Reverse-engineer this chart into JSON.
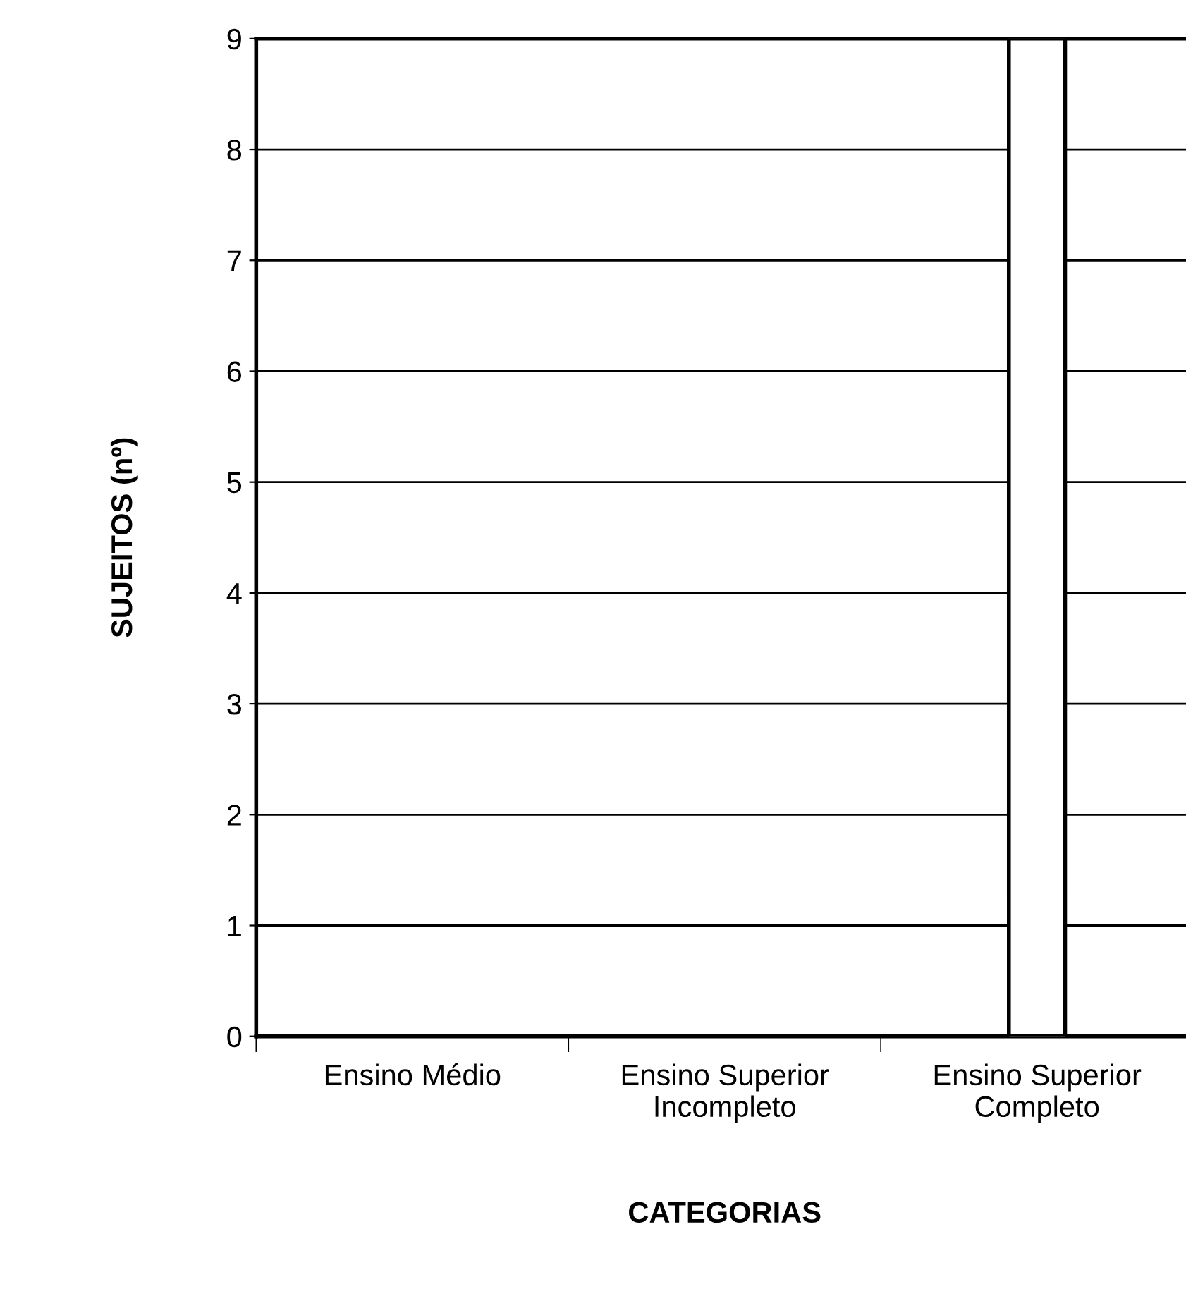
{
  "chart_data": {
    "type": "bar",
    "xlabel": "CATEGORIAS",
    "ylabel": "SUJEITOS (nº)",
    "categories": [
      "Ensino Médio",
      "Ensino Superior\nIncompleto",
      "Ensino Superior\nCompleto"
    ],
    "values": [
      null,
      null,
      9
    ],
    "color": "#ffffff",
    "ylim": [
      0,
      9
    ],
    "yticks": [
      0,
      1,
      2,
      3,
      4,
      5,
      6,
      7,
      8,
      9
    ],
    "grid": "y",
    "legend": false
  }
}
